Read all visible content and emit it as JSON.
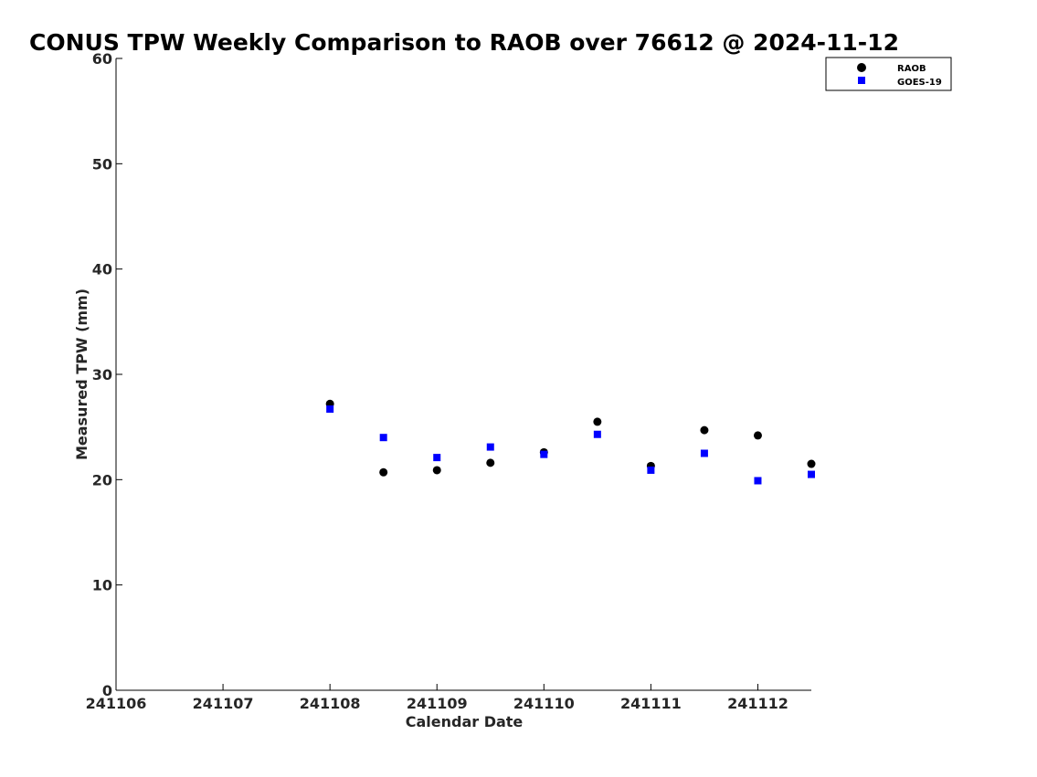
{
  "chart_data": {
    "type": "scatter",
    "title": "CONUS TPW Weekly Comparison to RAOB over 76612 @ 2024-11-12",
    "xlabel": "Calendar Date",
    "ylabel": "Measured TPW (mm)",
    "xlim": [
      241106,
      241112.5
    ],
    "ylim": [
      0,
      60
    ],
    "x_ticks": [
      241106,
      241107,
      241108,
      241109,
      241110,
      241111,
      241112
    ],
    "x_tick_labels": [
      "241106",
      "241107",
      "241108",
      "241109",
      "241110",
      "241111",
      "241112"
    ],
    "y_ticks": [
      0,
      10,
      20,
      30,
      40,
      50,
      60
    ],
    "y_tick_labels": [
      "0",
      "10",
      "20",
      "30",
      "40",
      "50",
      "60"
    ],
    "grid": false,
    "legend_position": "top-right",
    "series": [
      {
        "name": "RAOB",
        "marker": "circle",
        "color": "#000000",
        "x": [
          241108,
          241108.5,
          241109,
          241109.5,
          241110,
          241110.5,
          241111,
          241111.5,
          241112,
          241112.5
        ],
        "y": [
          27.2,
          20.7,
          20.9,
          21.6,
          22.6,
          25.5,
          21.3,
          24.7,
          24.2,
          21.5
        ]
      },
      {
        "name": "GOES-19",
        "marker": "square",
        "color": "#0000ff",
        "x": [
          241108,
          241108.5,
          241109,
          241109.5,
          241110,
          241110.5,
          241111,
          241111.5,
          241112,
          241112.5
        ],
        "y": [
          26.7,
          24.0,
          22.1,
          23.1,
          22.4,
          24.3,
          20.9,
          22.5,
          19.9,
          20.5
        ]
      }
    ]
  }
}
